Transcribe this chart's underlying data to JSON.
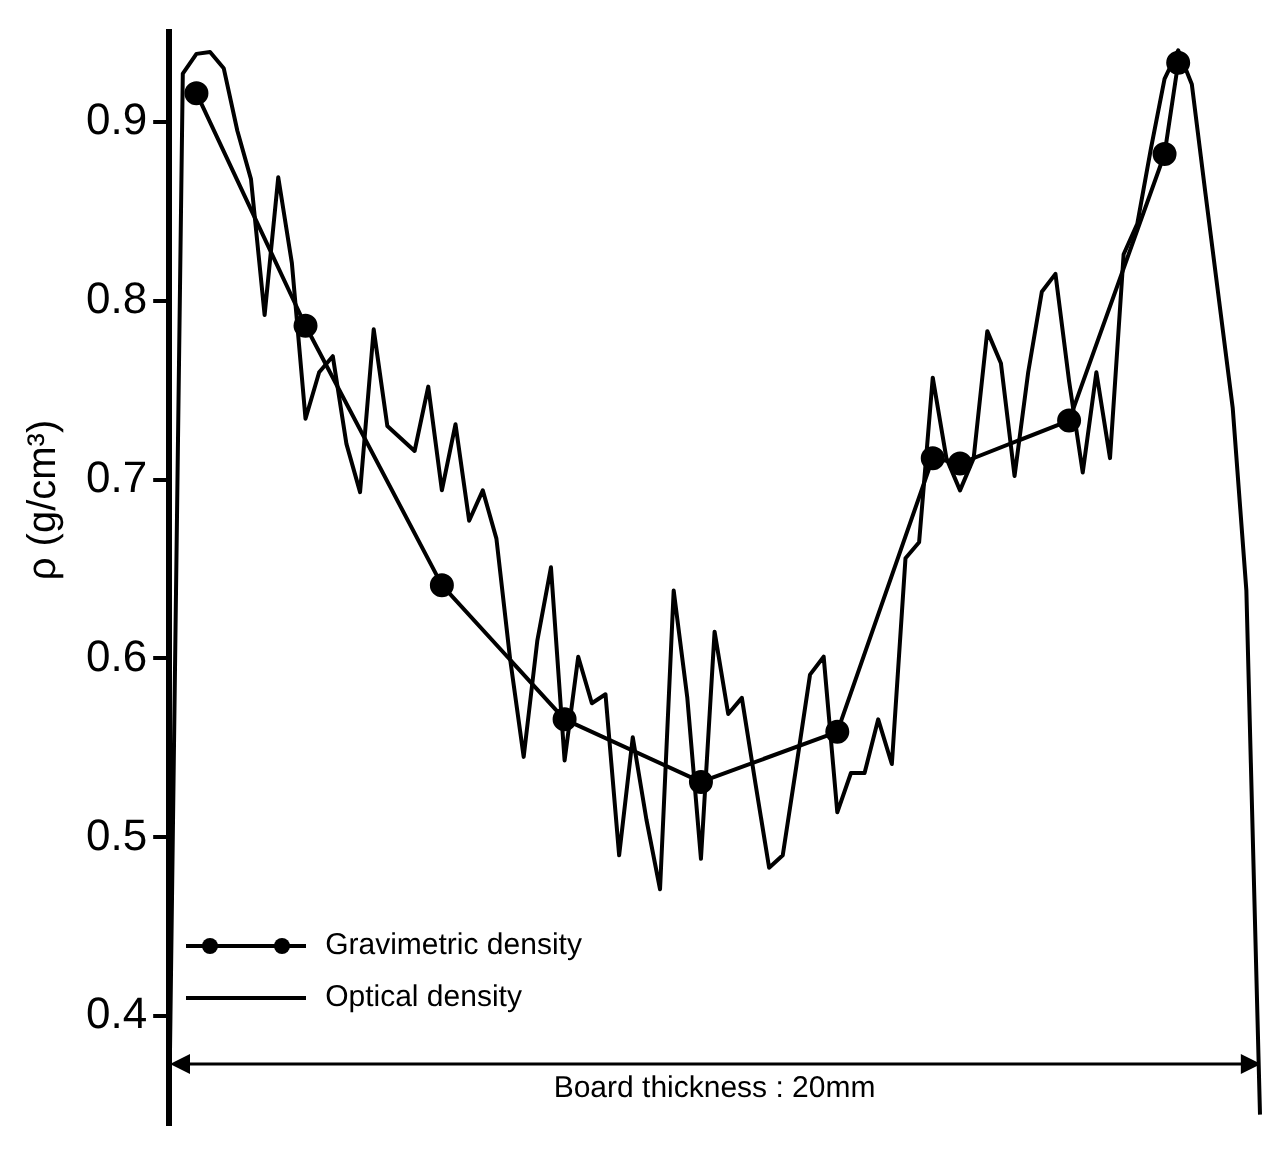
{
  "chart_data": {
    "type": "line",
    "ylabel": "ρ (g/cm³)",
    "xlabel": "Board thickness : 20mm",
    "categories": [
      null,
      null,
      null,
      null,
      null,
      null,
      null,
      null,
      null,
      null,
      null,
      null,
      null,
      null,
      null,
      null,
      null,
      null,
      null,
      null,
      null,
      null,
      null,
      null,
      null,
      null,
      null,
      null,
      null,
      null,
      null,
      null,
      null,
      null,
      null,
      null,
      null,
      null,
      null,
      null,
      null,
      null,
      null,
      null,
      null,
      null,
      null,
      null,
      null,
      null,
      null,
      null,
      null,
      null,
      null,
      null,
      null,
      null,
      null,
      null,
      null,
      null,
      null,
      null,
      null,
      null,
      null,
      null,
      null,
      null,
      null,
      null,
      null,
      null,
      null,
      null,
      null,
      null,
      null,
      null,
      null
    ],
    "ylim": [
      0.34,
      0.95
    ],
    "yticks": [
      0.4,
      0.5,
      0.6,
      0.7,
      0.8,
      0.9
    ],
    "tick_labels": "y",
    "grid": false,
    "legend": "bottom left",
    "series": [
      {
        "name": "Gravimetric density",
        "color": "#000000",
        "marker": "circle",
        "line_style": "solid",
        "values": [
          null,
          null,
          0.916,
          null,
          null,
          null,
          null,
          null,
          null,
          null,
          0.786,
          null,
          null,
          null,
          null,
          null,
          null,
          null,
          null,
          null,
          0.641,
          null,
          null,
          null,
          null,
          null,
          null,
          null,
          null,
          0.566,
          null,
          null,
          null,
          null,
          null,
          null,
          null,
          null,
          null,
          0.531,
          null,
          null,
          null,
          null,
          null,
          null,
          null,
          null,
          null,
          0.559,
          null,
          null,
          null,
          null,
          null,
          null,
          0.712,
          null,
          0.709,
          null,
          null,
          null,
          null,
          null,
          null,
          null,
          0.733,
          null,
          null,
          null,
          null,
          null,
          null,
          0.882,
          0.933,
          null,
          null,
          null,
          null,
          null,
          null
        ]
      },
      {
        "name": "Optical density",
        "color": "#000000",
        "marker": "none",
        "line_style": "solid",
        "values": [
          0.345,
          0.927,
          0.938,
          0.939,
          0.93,
          0.895,
          0.868,
          0.792,
          0.869,
          0.821,
          0.734,
          0.76,
          0.769,
          0.72,
          0.693,
          0.784,
          0.73,
          0.723,
          0.716,
          0.752,
          0.694,
          0.731,
          0.677,
          0.694,
          0.667,
          0.6,
          0.545,
          0.61,
          0.651,
          0.543,
          0.601,
          0.575,
          0.58,
          0.49,
          0.556,
          0.51,
          0.471,
          0.638,
          0.578,
          0.488,
          0.615,
          0.569,
          0.578,
          0.53,
          0.483,
          0.49,
          0.54,
          0.591,
          0.601,
          0.514,
          0.536,
          0.536,
          0.566,
          0.541,
          0.656,
          0.665,
          0.757,
          0.712,
          0.694,
          0.712,
          0.783,
          0.765,
          0.702,
          0.76,
          0.805,
          0.815,
          0.755,
          0.704,
          0.76,
          0.712,
          0.826,
          0.843,
          0.885,
          0.924,
          0.94,
          0.921,
          0.86,
          0.8,
          0.74,
          0.638,
          0.345
        ]
      }
    ]
  }
}
